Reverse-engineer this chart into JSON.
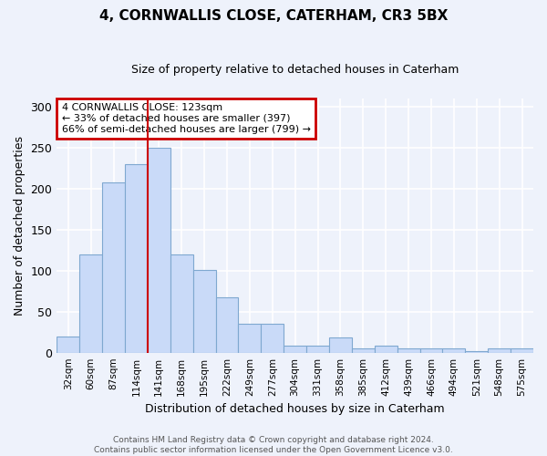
{
  "title": "4, CORNWALLIS CLOSE, CATERHAM, CR3 5BX",
  "subtitle": "Size of property relative to detached houses in Caterham",
  "xlabel": "Distribution of detached houses by size in Caterham",
  "ylabel": "Number of detached properties",
  "bar_labels": [
    "32sqm",
    "60sqm",
    "87sqm",
    "114sqm",
    "141sqm",
    "168sqm",
    "195sqm",
    "222sqm",
    "249sqm",
    "277sqm",
    "304sqm",
    "331sqm",
    "358sqm",
    "385sqm",
    "412sqm",
    "439sqm",
    "466sqm",
    "494sqm",
    "521sqm",
    "548sqm",
    "575sqm"
  ],
  "bar_values": [
    20,
    120,
    207,
    230,
    250,
    120,
    101,
    68,
    35,
    35,
    8,
    8,
    18,
    5,
    8,
    5,
    5,
    5,
    2,
    5,
    5
  ],
  "bar_color": "#c9daf8",
  "bar_edgecolor": "#7fa8d0",
  "vline_color": "#cc0000",
  "annotation_text": "4 CORNWALLIS CLOSE: 123sqm\n← 33% of detached houses are smaller (397)\n66% of semi-detached houses are larger (799) →",
  "annotation_box_color": "#ffffff",
  "annotation_box_edgecolor": "#cc0000",
  "ylim": [
    0,
    310
  ],
  "yticks": [
    0,
    50,
    100,
    150,
    200,
    250,
    300
  ],
  "footnote": "Contains HM Land Registry data © Crown copyright and database right 2024.\nContains public sector information licensed under the Open Government Licence v3.0.",
  "background_color": "#eef2fb",
  "plot_background": "#eef2fb",
  "grid_color": "#ffffff",
  "title_fontsize": 11,
  "subtitle_fontsize": 9
}
